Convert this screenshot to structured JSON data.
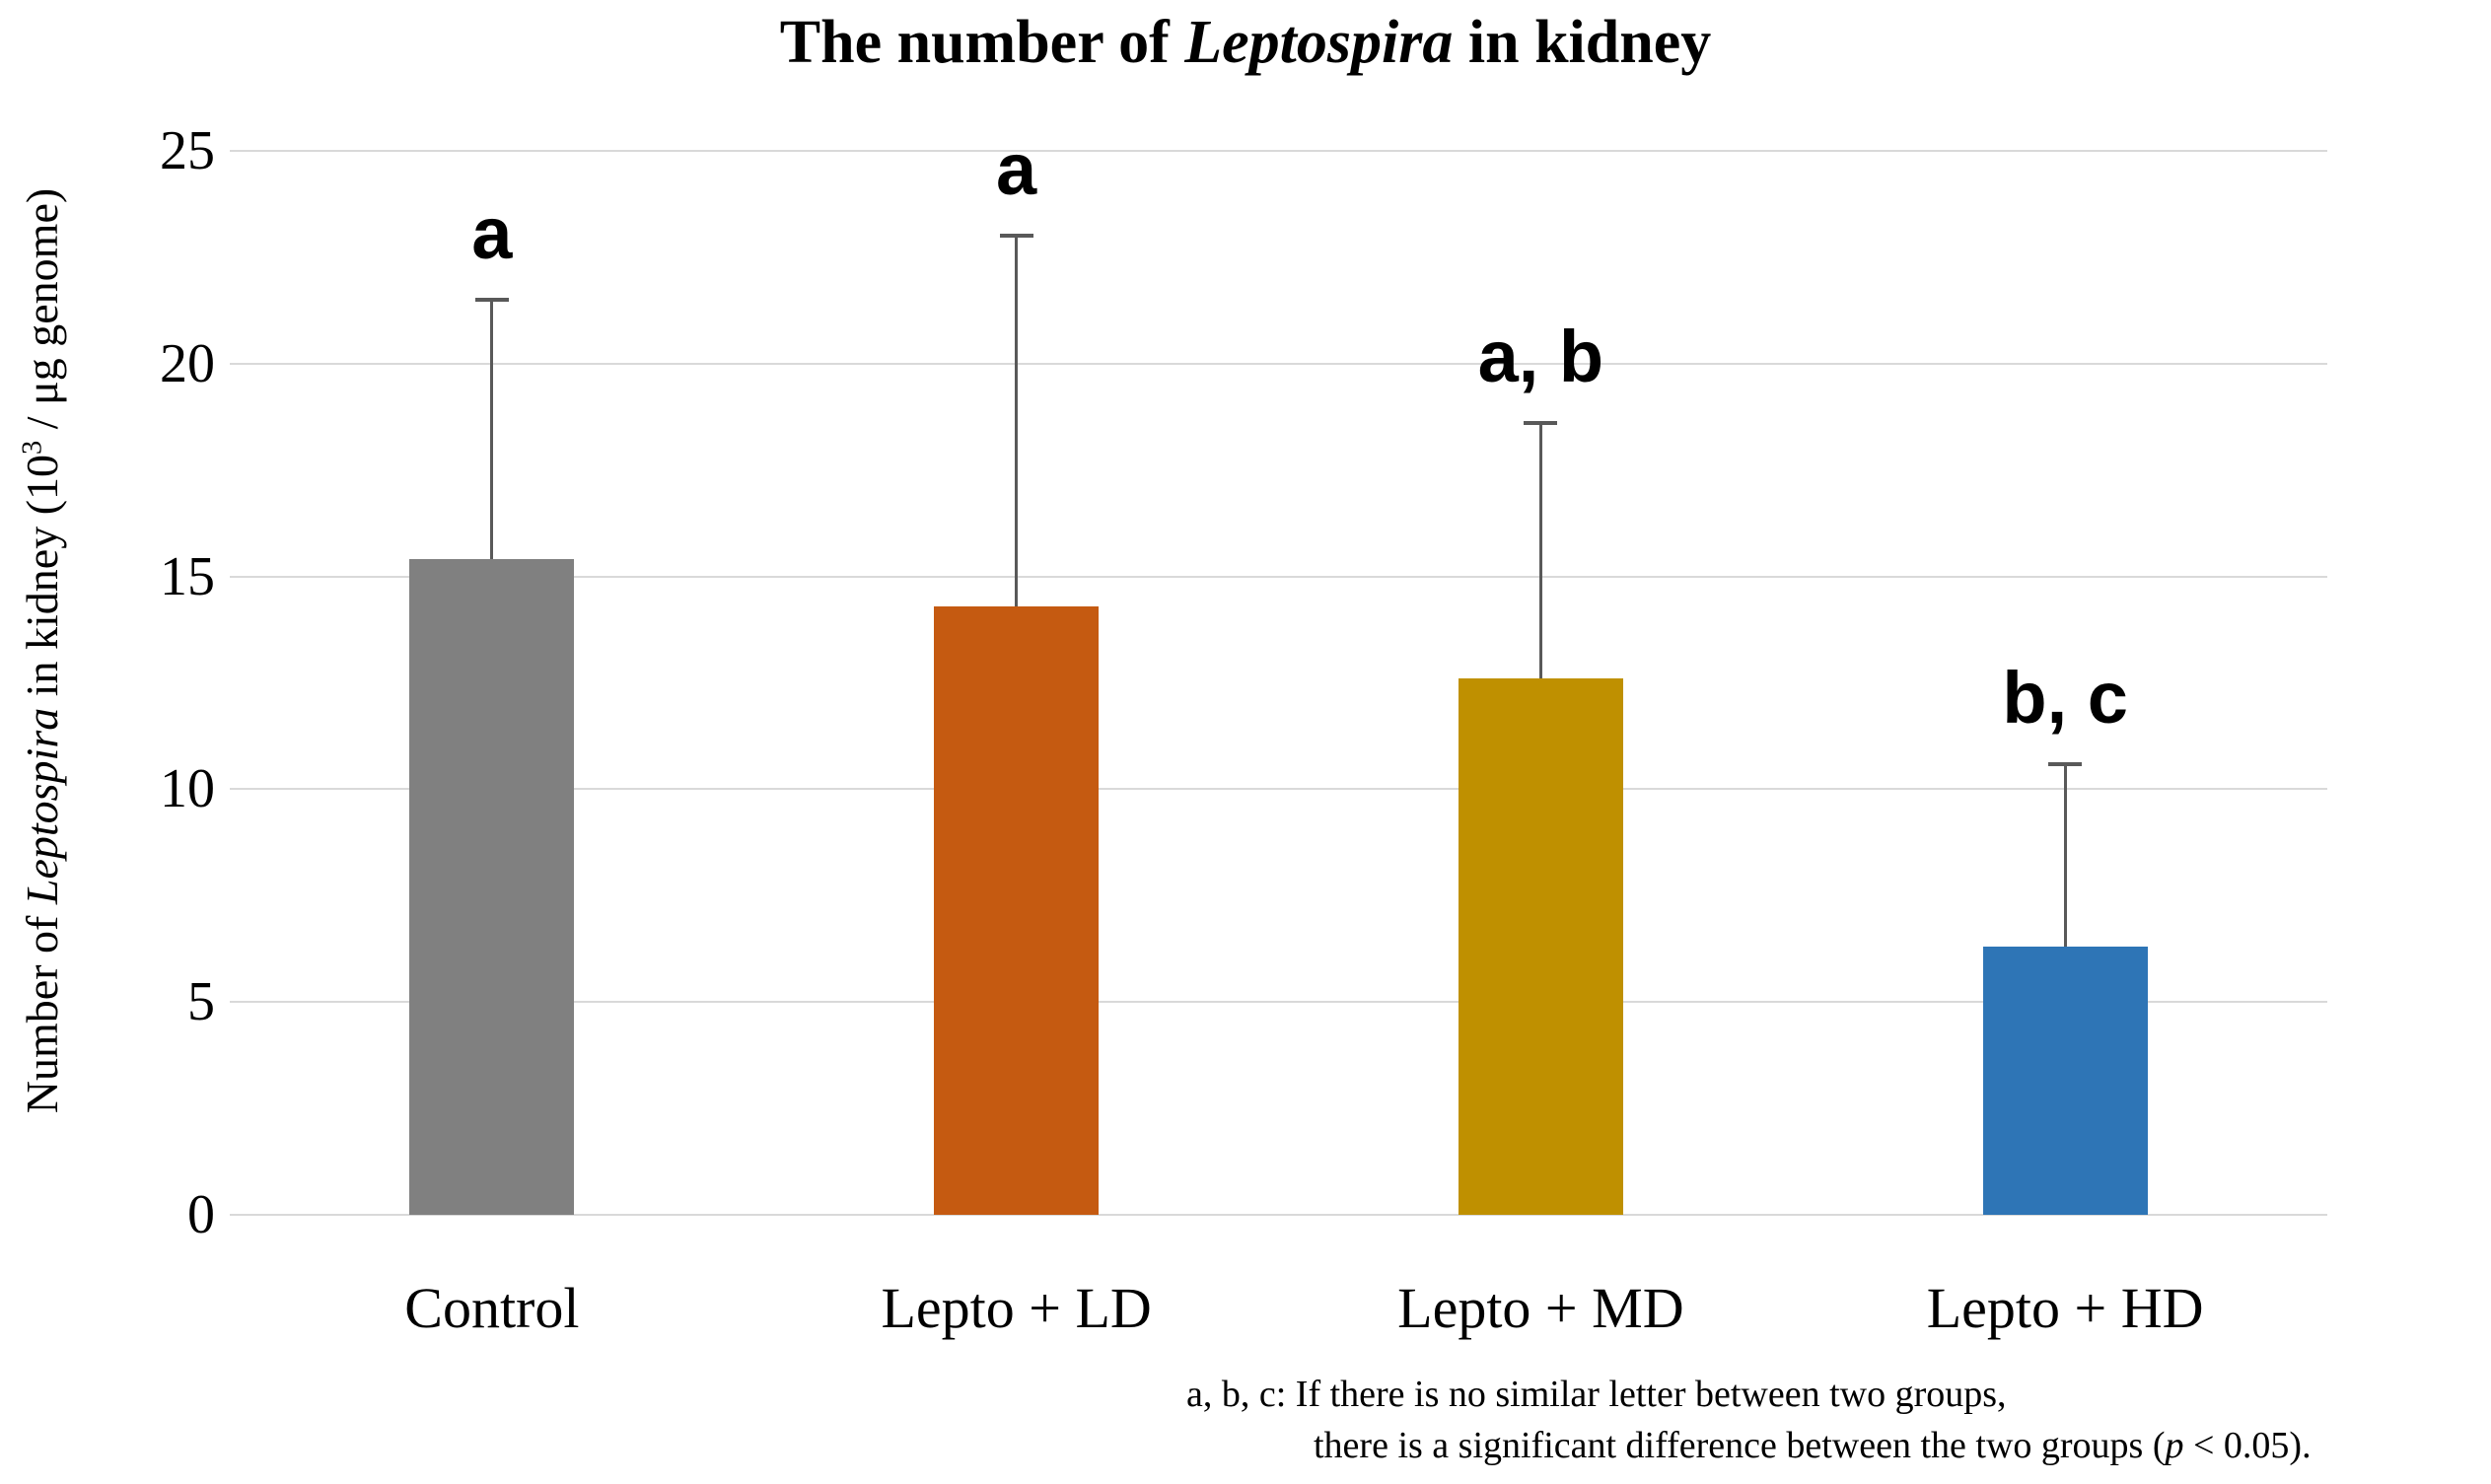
{
  "title_segments": [
    {
      "text": "The number of "
    },
    {
      "text": "Leptospira",
      "italic": true
    },
    {
      "text": " in kidney"
    }
  ],
  "y_axis": {
    "label_segments": [
      {
        "text": "Number of "
      },
      {
        "text": "Leptospira",
        "italic": true
      },
      {
        "text": " in kidney (10"
      },
      {
        "text": "3",
        "sup": true
      },
      {
        "text": " / μg genome)"
      }
    ]
  },
  "footnote": {
    "line1": "a, b, c: If there is no similar letter between two groups,",
    "line2_segments": [
      {
        "text": "there is a significant difference between the two groups ("
      },
      {
        "text": "p",
        "italic": true
      },
      {
        "text": " < 0.05)."
      }
    ]
  },
  "chart_data": {
    "type": "bar",
    "title": "The number of Leptospira in kidney",
    "ylabel": "Number of Leptospira in kidney (10^3 / μg genome)",
    "xlabel": "",
    "categories": [
      "Control",
      "Lepto + LD",
      "Lepto + MD",
      "Lepto + HD"
    ],
    "values": [
      15.4,
      14.3,
      12.6,
      6.3
    ],
    "error_plus": [
      6.1,
      8.7,
      6.0,
      4.3
    ],
    "error_top": [
      21.5,
      23.0,
      18.6,
      10.6
    ],
    "sig_letters": [
      "a",
      "a",
      "a, b",
      "b, c"
    ],
    "bar_colors": [
      "#808080",
      "#C55A11",
      "#BF9000",
      "#2E75B6"
    ],
    "error_bar_color": "#595959",
    "gridline_color": "#D9D9D9",
    "ylim": [
      0,
      25
    ],
    "yticks": [
      0,
      5,
      10,
      15,
      20,
      25
    ],
    "grid": "horizontal",
    "legend": "none"
  }
}
